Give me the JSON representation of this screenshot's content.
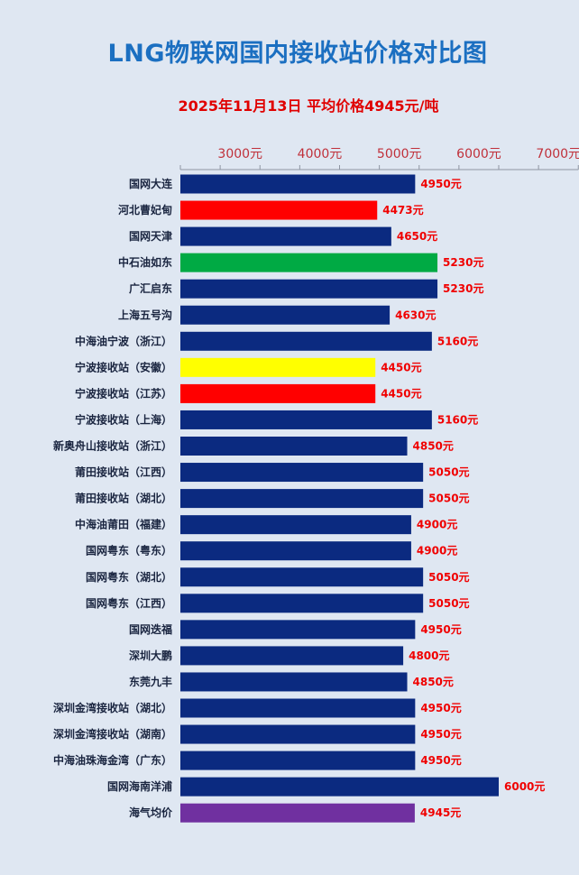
{
  "chart_data": {
    "type": "bar",
    "orientation": "horizontal",
    "title": "LNG物联网国内接收站价格对比图",
    "subtitle": "2025年11月13日 平均价格4945元/吨",
    "xlim": [
      2000,
      7000
    ],
    "ticks": [
      3000,
      4000,
      5000,
      6000,
      7000
    ],
    "tick_labels": [
      "3000元",
      "4000元",
      "5000元",
      "6000元",
      "7000元"
    ],
    "grid": false,
    "categories": [
      "国网大连",
      "河北曹妃甸",
      "国网天津",
      "中石油如东",
      "广汇启东",
      "上海五号沟",
      "中海油宁波（浙江）",
      "宁波接收站（安徽）",
      "宁波接收站（江苏）",
      "宁波接收站（上海）",
      "新奥舟山接收站（浙江）",
      "莆田接收站（江西）",
      "莆田接收站（湖北）",
      "中海油莆田（福建）",
      "国网粤东（粤东）",
      "国网粤东（湖北）",
      "国网粤东（江西）",
      "国网迭福",
      "深圳大鹏",
      "东莞九丰",
      "深圳金湾接收站（湖北）",
      "深圳金湾接收站（湖南）",
      "中海油珠海金湾（广东）",
      "国网海南洋浦",
      "海气均价"
    ],
    "values": [
      4950,
      4473,
      4650,
      5230,
      5230,
      4630,
      5160,
      4450,
      4450,
      5160,
      4850,
      5050,
      5050,
      4900,
      4900,
      5050,
      5050,
      4950,
      4800,
      4850,
      4950,
      4950,
      4950,
      6000,
      4945
    ],
    "value_labels": [
      "4950元",
      "4473元",
      "4650元",
      "5230元",
      "5230元",
      "4630元",
      "5160元",
      "4450元",
      "4450元",
      "5160元",
      "4850元",
      "5050元",
      "5050元",
      "4900元",
      "4900元",
      "5050元",
      "5050元",
      "4950元",
      "4800元",
      "4850元",
      "4950元",
      "4950元",
      "4950元",
      "6000元",
      "4945元"
    ],
    "colors": [
      "#0b2a80",
      "#ff0000",
      "#0b2a80",
      "#00aa44",
      "#0b2a80",
      "#0b2a80",
      "#0b2a80",
      "#ffff00",
      "#ff0000",
      "#0b2a80",
      "#0b2a80",
      "#0b2a80",
      "#0b2a80",
      "#0b2a80",
      "#0b2a80",
      "#0b2a80",
      "#0b2a80",
      "#0b2a80",
      "#0b2a80",
      "#0b2a80",
      "#0b2a80",
      "#0b2a80",
      "#0b2a80",
      "#0b2a80",
      "#7030a0"
    ]
  }
}
